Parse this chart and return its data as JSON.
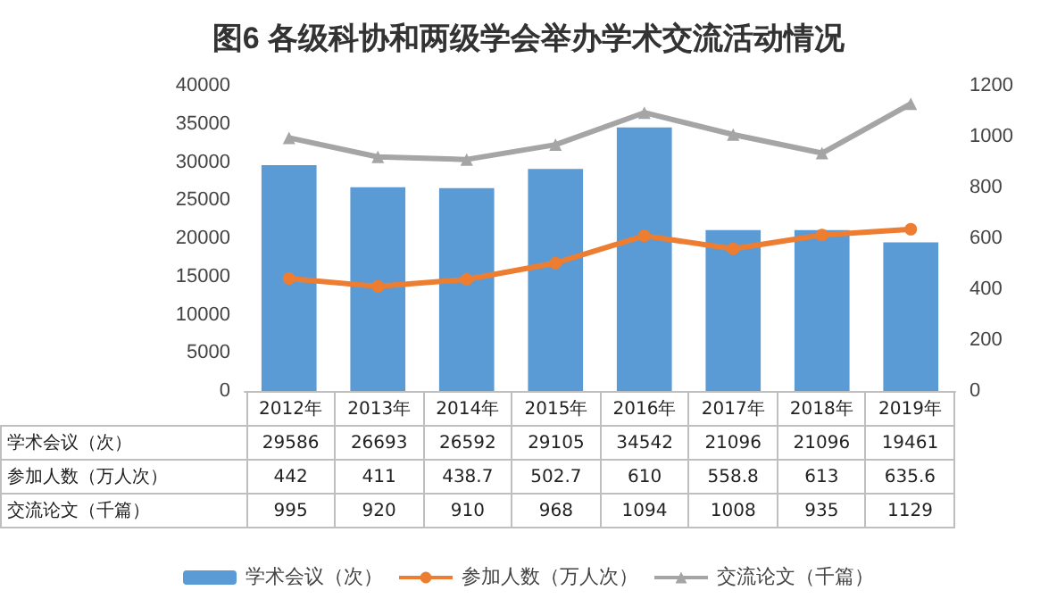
{
  "chart_data": {
    "type": "bar",
    "title": "图6 各级科协和两级学会举办学术交流活动情况",
    "categories": [
      "2012年",
      "2013年",
      "2014年",
      "2015年",
      "2016年",
      "2017年",
      "2018年",
      "2019年"
    ],
    "series": [
      {
        "name": "学术会议（次）",
        "color": "#5b9bd5",
        "values": [
          29586,
          26693,
          26592,
          29105,
          34542,
          21096,
          21096,
          19461
        ]
      },
      {
        "name": "参加人数（万人次）",
        "type": "line",
        "axis": "y2",
        "marker": "circle",
        "color": "#ed7d31",
        "values": [
          442,
          411,
          438.7,
          502.7,
          610,
          558.8,
          613,
          635.6
        ]
      },
      {
        "name": "交流论文（千篇）",
        "type": "line",
        "axis": "y2",
        "marker": "triangle",
        "color": "#a5a5a5",
        "values": [
          995,
          920,
          910,
          968,
          1094,
          1008,
          935,
          1129
        ]
      }
    ],
    "ylim": [
      0,
      40000
    ],
    "yticks": [
      0,
      5000,
      10000,
      15000,
      20000,
      25000,
      30000,
      35000,
      40000
    ],
    "y2lim": [
      0,
      1200
    ],
    "y2ticks": [
      0,
      200,
      400,
      600,
      800,
      1000,
      1200
    ],
    "data_labels": true,
    "legend": "bottom",
    "line_style": "solid"
  }
}
